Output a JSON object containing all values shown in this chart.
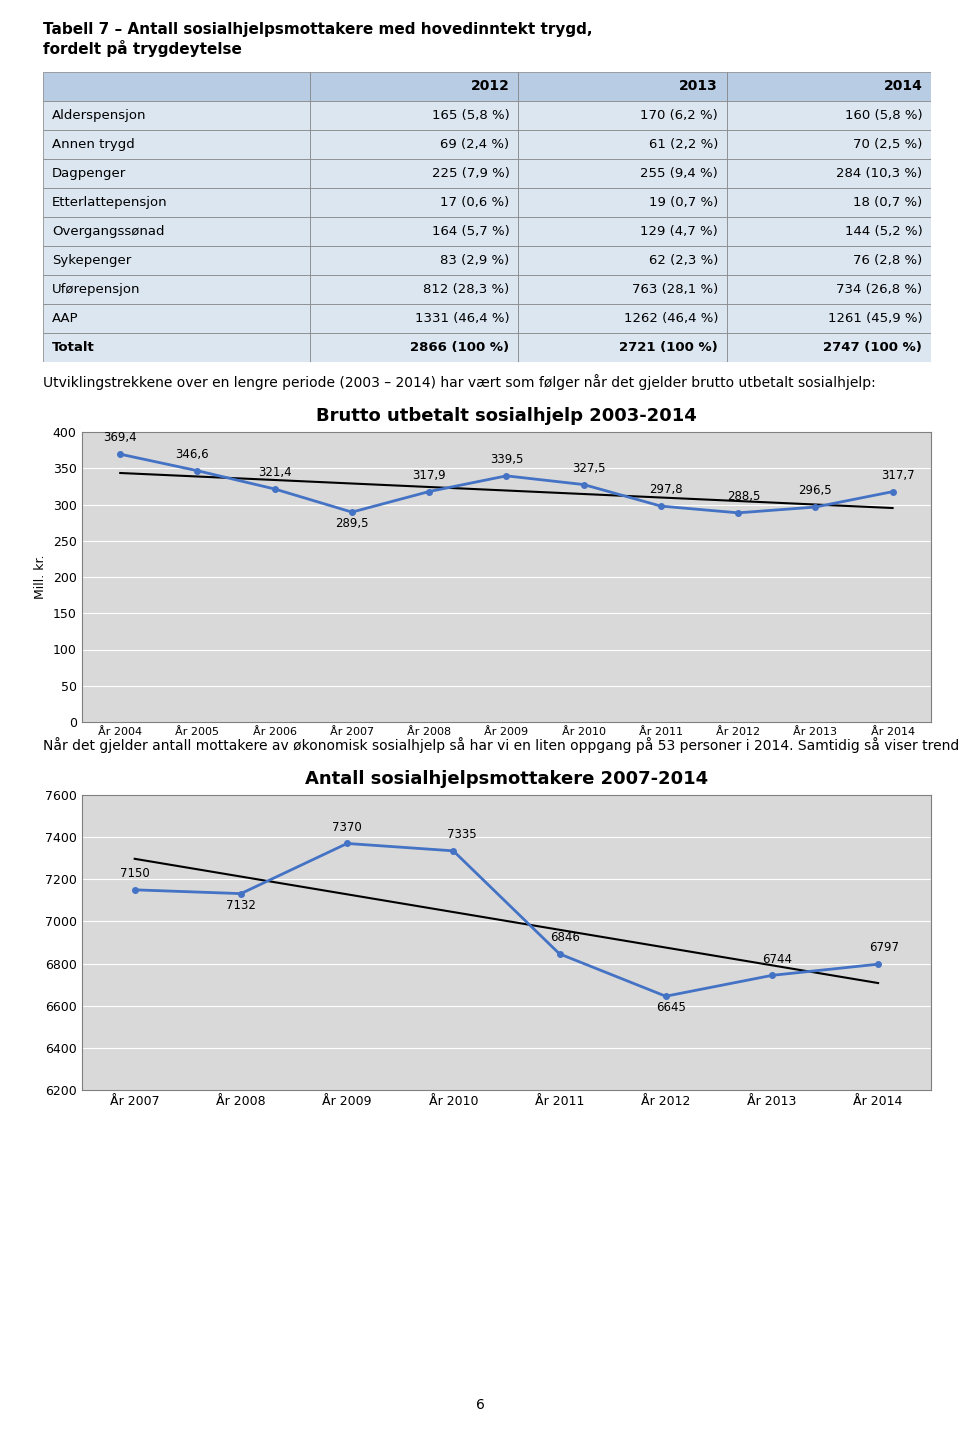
{
  "page_bg": "#ffffff",
  "title_line1": "Tabell 7 – Antall sosialhjelpsmottakere med hovedinntekt trygd,",
  "title_line2": "fordelt på trygdeytelse",
  "table_headers": [
    "",
    "2012",
    "2013",
    "2014"
  ],
  "table_rows": [
    [
      "Alderspensjon",
      "165 (5,8 %)",
      "170 (6,2 %)",
      "160 (5,8 %)"
    ],
    [
      "Annen trygd",
      "69 (2,4 %)",
      "61 (2,2 %)",
      "70 (2,5 %)"
    ],
    [
      "Dagpenger",
      "225 (7,9 %)",
      "255 (9,4 %)",
      "284 (10,3 %)"
    ],
    [
      "Etterlattepensjon",
      "17 (0,6 %)",
      "19 (0,7 %)",
      "18 (0,7 %)"
    ],
    [
      "Overgangssønad",
      "164 (5,7 %)",
      "129 (4,7 %)",
      "144 (5,2 %)"
    ],
    [
      "Sykepenger",
      "83 (2,9 %)",
      "62 (2,3 %)",
      "76 (2,8 %)"
    ],
    [
      "Uførepensjon",
      "812 (28,3 %)",
      "763 (28,1 %)",
      "734 (26,8 %)"
    ],
    [
      "AAP",
      "1331 (46,4 %)",
      "1262 (46,4 %)",
      "1261 (45,9 %)"
    ],
    [
      "Totalt",
      "2866 (100 %)",
      "2721 (100 %)",
      "2747 (100 %)"
    ]
  ],
  "table_header_bg": "#b8cce4",
  "table_row_bg": "#dce6f1",
  "table_border_color": "#7f7f7f",
  "para1": "Utviklingstrekkene over en lengre periode (2003 – 2014) har vært som følger når det gjelder brutto utbetalt sosialhjelp:",
  "chart1_title": "Brutto utbetalt sosialhjelp 2003-2014",
  "chart1_bg": "#d9d9d9",
  "chart1_x": [
    2004,
    2005,
    2006,
    2007,
    2008,
    2009,
    2010,
    2011,
    2012,
    2013,
    2014
  ],
  "chart1_y": [
    369.4,
    346.6,
    321.4,
    289.5,
    317.9,
    339.5,
    327.5,
    297.8,
    288.5,
    296.5,
    317.7
  ],
  "chart1_ylabel": "Mill. kr.",
  "chart1_ylim": [
    0,
    400
  ],
  "chart1_yticks": [
    0,
    50,
    100,
    150,
    200,
    250,
    300,
    350,
    400
  ],
  "chart1_line_color": "#4472c4",
  "chart1_trend_color": "#000000",
  "para2": "Når det gjelder antall mottakere av økonomisk sosialhjelp så har vi en liten oppgang på 53 personer i 2014. Samtidig så viser trendlinjen en nedadgående trend.",
  "chart2_title": "Antall sosialhjelpsmottakere 2007-2014",
  "chart2_bg": "#d9d9d9",
  "chart2_x": [
    2007,
    2008,
    2009,
    2010,
    2011,
    2012,
    2013,
    2014
  ],
  "chart2_y": [
    7150,
    7132,
    7370,
    7335,
    6846,
    6645,
    6744,
    6797
  ],
  "chart2_ylim": [
    6200,
    7600
  ],
  "chart2_yticks": [
    6200,
    6400,
    6600,
    6800,
    7000,
    7200,
    7400,
    7600
  ],
  "chart2_line_color": "#4472c4",
  "chart2_trend_color": "#000000",
  "footer": "6"
}
